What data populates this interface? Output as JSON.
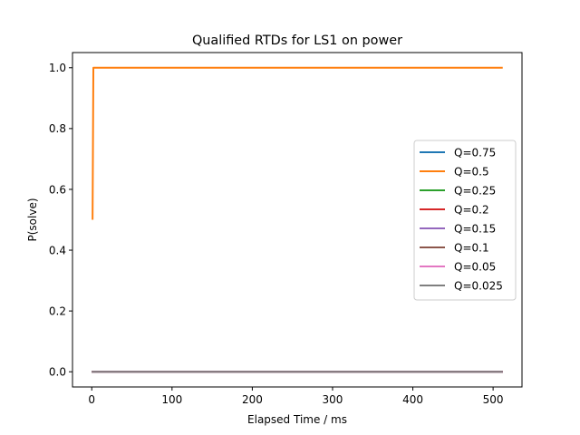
{
  "chart_data": {
    "type": "line",
    "title": "Qualified RTDs for LS1 on power",
    "xlabel": "Elapsed Time / ms",
    "ylabel": "P(solve)",
    "xlim": [
      -24,
      536
    ],
    "ylim": [
      -0.05,
      1.05
    ],
    "xticks": [
      0,
      100,
      200,
      300,
      400,
      500
    ],
    "yticks": [
      0.0,
      0.2,
      0.4,
      0.6,
      0.8,
      1.0
    ],
    "ytick_labels": [
      "0.0",
      "0.2",
      "0.4",
      "0.6",
      "0.8",
      "1.0"
    ],
    "grid": false,
    "legend_position": "center-right",
    "series": [
      {
        "name": "Q=0.75",
        "color": "#1f77b4",
        "x": [
          0,
          512
        ],
        "y": [
          0,
          0
        ]
      },
      {
        "name": "Q=0.5",
        "color": "#ff7f0e",
        "x": [
          1,
          1,
          2,
          512
        ],
        "y": [
          0.5,
          0.5,
          1.0,
          1.0
        ]
      },
      {
        "name": "Q=0.25",
        "color": "#2ca02c",
        "x": [
          0,
          512
        ],
        "y": [
          0,
          0
        ]
      },
      {
        "name": "Q=0.2",
        "color": "#d62728",
        "x": [
          0,
          512
        ],
        "y": [
          0,
          0
        ]
      },
      {
        "name": "Q=0.15",
        "color": "#9467bd",
        "x": [
          0,
          512
        ],
        "y": [
          0,
          0
        ]
      },
      {
        "name": "Q=0.1",
        "color": "#8c564b",
        "x": [
          0,
          512
        ],
        "y": [
          0,
          0
        ]
      },
      {
        "name": "Q=0.05",
        "color": "#e377c2",
        "x": [
          0,
          512
        ],
        "y": [
          0,
          0
        ]
      },
      {
        "name": "Q=0.025",
        "color": "#7f7f7f",
        "x": [
          0,
          512
        ],
        "y": [
          0,
          0
        ]
      }
    ]
  }
}
